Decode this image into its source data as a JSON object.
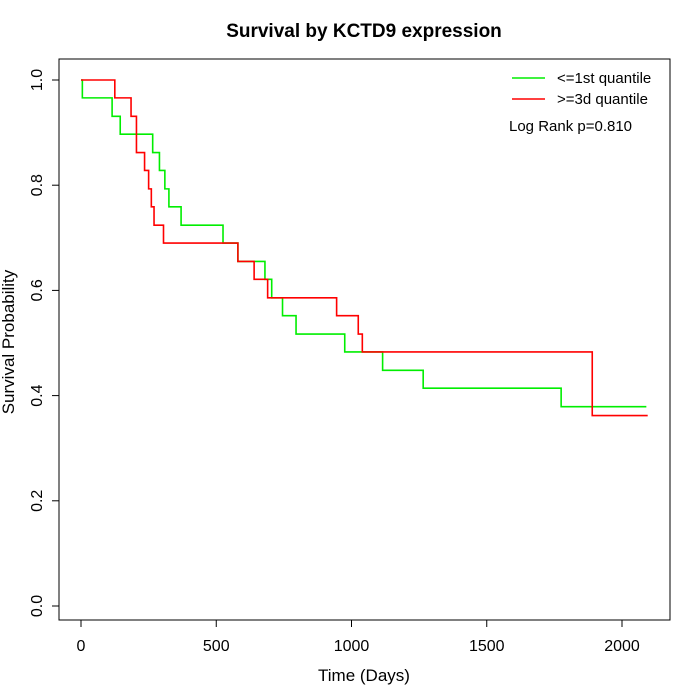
{
  "chart_data": {
    "type": "line",
    "title": "Survival by KCTD9 expression",
    "xlabel": "Time (Days)",
    "ylabel": "Survival Probability",
    "xlim": [
      0,
      2100
    ],
    "ylim": [
      0,
      1
    ],
    "x_ticks": [
      0,
      500,
      1000,
      1500,
      2000
    ],
    "y_ticks": [
      0.0,
      0.2,
      0.4,
      0.6,
      0.8,
      1.0
    ],
    "x_tick_labels": [
      "0",
      "500",
      "1000",
      "1500",
      "2000"
    ],
    "y_tick_labels": [
      "0.0",
      "0.2",
      "0.4",
      "0.6",
      "0.8",
      "1.0"
    ],
    "grid": false,
    "legend_position": "top-right",
    "annotation": "Log Rank p=0.810",
    "series": [
      {
        "name": "<=1st quantile",
        "color": "#00ee00",
        "step": true,
        "x": [
          0,
          5,
          115,
          145,
          265,
          290,
          310,
          325,
          340,
          370,
          525,
          580,
          680,
          705,
          745,
          795,
          975,
          1115,
          1265,
          1775,
          2090
        ],
        "y": [
          1.0,
          0.966,
          0.931,
          0.897,
          0.862,
          0.828,
          0.793,
          0.759,
          0.759,
          0.724,
          0.69,
          0.655,
          0.621,
          0.586,
          0.552,
          0.517,
          0.483,
          0.448,
          0.414,
          0.379,
          0.379
        ]
      },
      {
        "name": ">=3d quantile",
        "color": "#ff0000",
        "step": true,
        "x": [
          0,
          125,
          185,
          205,
          235,
          250,
          260,
          270,
          280,
          305,
          580,
          640,
          690,
          945,
          1025,
          1040,
          1890,
          2095
        ],
        "y": [
          1.0,
          0.966,
          0.931,
          0.862,
          0.828,
          0.793,
          0.759,
          0.724,
          0.724,
          0.69,
          0.655,
          0.621,
          0.586,
          0.552,
          0.517,
          0.483,
          0.362,
          0.362
        ]
      }
    ]
  }
}
